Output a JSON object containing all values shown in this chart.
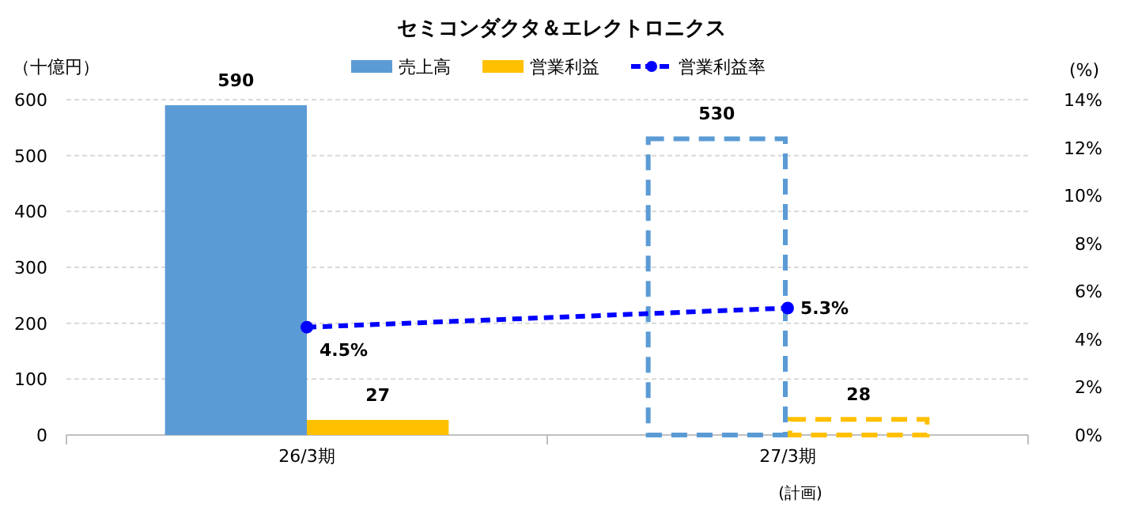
{
  "chart_data": {
    "type": "bar",
    "title": "セミコンダクタ＆エレクトロニクス",
    "categories": [
      "26/3期",
      "27/3期"
    ],
    "annotations": [
      "(計画)"
    ],
    "ylabel": "（十億円）",
    "y2label": "(%)",
    "series": [
      {
        "name": "売上高",
        "color": "#5b9bd5",
        "values": [
          590,
          530
        ],
        "line_style": [
          "solid",
          "dashed"
        ]
      },
      {
        "name": "営業利益",
        "color": "#ffc000",
        "values": [
          27,
          28
        ],
        "line_style": [
          "solid",
          "dashed"
        ]
      },
      {
        "name": "営業利益率",
        "type": "line",
        "axis": "y2",
        "color": "#0000ff",
        "values": [
          4.5,
          5.3
        ],
        "value_labels": [
          "4.5%",
          "5.3%"
        ],
        "marker": "circle",
        "line_style": "dashed"
      }
    ],
    "data_labels": true,
    "ylim": [
      0,
      600
    ],
    "yticks": [
      0,
      100,
      200,
      300,
      400,
      500,
      600
    ],
    "y2lim": [
      0,
      14
    ],
    "y2ticks": [
      {
        "value": 0,
        "label": "0%"
      },
      {
        "value": 2,
        "label": "2%"
      },
      {
        "value": 4,
        "label": "4%"
      },
      {
        "value": 6,
        "label": "6%"
      },
      {
        "value": 8,
        "label": "8%"
      },
      {
        "value": 10,
        "label": "10%"
      },
      {
        "value": 12,
        "label": "12%"
      },
      {
        "value": 14,
        "label": "14%"
      }
    ],
    "grid": "y",
    "legend": "top"
  }
}
